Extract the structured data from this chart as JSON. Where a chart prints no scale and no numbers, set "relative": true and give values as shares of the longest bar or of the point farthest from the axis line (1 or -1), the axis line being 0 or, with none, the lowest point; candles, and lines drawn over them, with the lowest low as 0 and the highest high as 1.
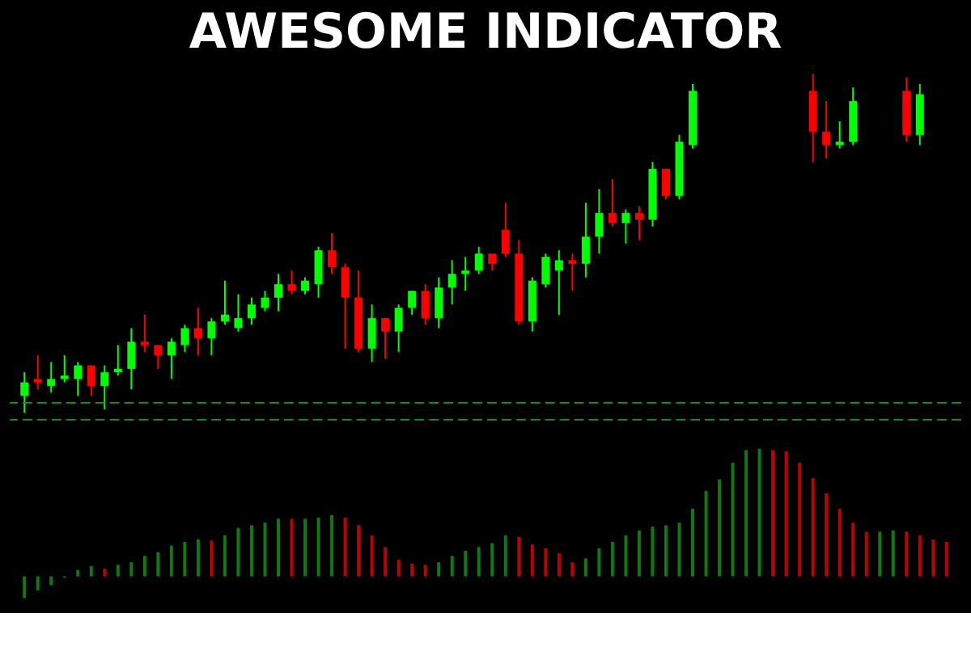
{
  "chart_data": [
    {
      "type": "candlestick",
      "title": "AWESOME INDICATOR",
      "relative": true,
      "categories": [
        null,
        null,
        null,
        null,
        null,
        null,
        null,
        null,
        null,
        null,
        null,
        null,
        null,
        null,
        null,
        null,
        null,
        null,
        null,
        null,
        null,
        null,
        null,
        null,
        null,
        null,
        null,
        null,
        null,
        null,
        null,
        null,
        null,
        null,
        null,
        null,
        null,
        null,
        null,
        null,
        null,
        null,
        null,
        null,
        null,
        null,
        null,
        null,
        null,
        null,
        null,
        null,
        null,
        null,
        null,
        null,
        null,
        null,
        null,
        null,
        null,
        null,
        null,
        null,
        null,
        null,
        null,
        null,
        null,
        null
      ],
      "ohlc": [
        [
          0.05,
          0.12,
          0,
          0.09
        ],
        [
          0.1,
          0.17,
          0.07,
          0.09
        ],
        [
          0.08,
          0.15,
          0.06,
          0.1
        ],
        [
          0.1,
          0.17,
          0.09,
          0.11
        ],
        [
          0.1,
          0.15,
          0.05,
          0.14
        ],
        [
          0.14,
          0.14,
          0.05,
          0.08
        ],
        [
          0.08,
          0.14,
          0.01,
          0.12
        ],
        [
          0.12,
          0.2,
          0.11,
          0.13
        ],
        [
          0.13,
          0.25,
          0.07,
          0.21
        ],
        [
          0.21,
          0.29,
          0.18,
          0.2
        ],
        [
          0.2,
          0.2,
          0.13,
          0.17
        ],
        [
          0.17,
          0.22,
          0.1,
          0.21
        ],
        [
          0.2,
          0.26,
          0.18,
          0.25
        ],
        [
          0.25,
          0.31,
          0.17,
          0.22
        ],
        [
          0.22,
          0.28,
          0.17,
          0.27
        ],
        [
          0.27,
          0.39,
          0.26,
          0.29
        ],
        [
          0.25,
          0.35,
          0.24,
          0.28
        ],
        [
          0.28,
          0.34,
          0.26,
          0.32
        ],
        [
          0.31,
          0.36,
          0.3,
          0.34
        ],
        [
          0.34,
          0.41,
          0.3,
          0.38
        ],
        [
          0.38,
          0.42,
          0.35,
          0.36
        ],
        [
          0.36,
          0.4,
          0.35,
          0.39
        ],
        [
          0.38,
          0.49,
          0.34,
          0.48
        ],
        [
          0.48,
          0.53,
          0.41,
          0.43
        ],
        [
          0.43,
          0.44,
          0.19,
          0.34
        ],
        [
          0.34,
          0.42,
          0.18,
          0.19
        ],
        [
          0.19,
          0.32,
          0.15,
          0.28
        ],
        [
          0.28,
          0.28,
          0.16,
          0.24
        ],
        [
          0.24,
          0.32,
          0.18,
          0.31
        ],
        [
          0.31,
          0.36,
          0.29,
          0.36
        ],
        [
          0.36,
          0.38,
          0.26,
          0.28
        ],
        [
          0.28,
          0.4,
          0.25,
          0.37
        ],
        [
          0.37,
          0.45,
          0.32,
          0.41
        ],
        [
          0.41,
          0.46,
          0.36,
          0.42
        ],
        [
          0.42,
          0.49,
          0.41,
          0.47
        ],
        [
          0.47,
          0.47,
          0.42,
          0.44
        ],
        [
          0.54,
          0.62,
          0.46,
          0.47
        ],
        [
          0.47,
          0.51,
          0.26,
          0.27
        ],
        [
          0.27,
          0.4,
          0.24,
          0.39
        ],
        [
          0.38,
          0.47,
          0.37,
          0.46
        ],
        [
          0.42,
          0.48,
          0.29,
          0.45
        ],
        [
          0.45,
          0.47,
          0.36,
          0.44
        ],
        [
          0.44,
          0.62,
          0.4,
          0.52
        ],
        [
          0.52,
          0.66,
          0.47,
          0.59
        ],
        [
          0.59,
          0.69,
          0.55,
          0.56
        ],
        [
          0.56,
          0.6,
          0.5,
          0.59
        ],
        [
          0.59,
          0.61,
          0.51,
          0.57
        ],
        [
          0.57,
          0.74,
          0.55,
          0.72
        ],
        [
          0.72,
          0.72,
          0.63,
          0.64
        ],
        [
          0.64,
          0.82,
          0.63,
          0.8
        ],
        [
          0.79,
          0.97,
          0.78,
          0.95
        ],
        null,
        null,
        null,
        null,
        null,
        null,
        null,
        null,
        [
          0.95,
          1,
          0.74,
          0.83
        ],
        [
          0.83,
          0.92,
          0.75,
          0.79
        ],
        [
          0.79,
          0.86,
          0.78,
          0.8
        ],
        [
          0.8,
          0.96,
          0.79,
          0.92
        ],
        null,
        null,
        null,
        [
          0.95,
          0.99,
          0.8,
          0.82
        ],
        [
          0.82,
          0.97,
          0.79,
          0.94
        ],
        null,
        null
      ],
      "colors": [
        "#00ff00",
        "#ff0000",
        "#00ff00",
        "#00ff00",
        "#00ff00",
        "#ff0000",
        "#00ff00",
        "#00ff00",
        "#00ff00",
        "#ff0000",
        "#ff0000",
        "#00ff00",
        "#00ff00",
        "#ff0000",
        "#00ff00",
        "#00ff00",
        "#00ff00",
        "#00ff00",
        "#00ff00",
        "#00ff00",
        "#ff0000",
        "#00ff00",
        "#00ff00",
        "#ff0000",
        "#ff0000",
        "#ff0000",
        "#00ff00",
        "#ff0000",
        "#00ff00",
        "#00ff00",
        "#ff0000",
        "#00ff00",
        "#00ff00",
        "#00ff00",
        "#00ff00",
        "#ff0000",
        "#ff0000",
        "#ff0000",
        "#00ff00",
        "#00ff00",
        "#00ff00",
        "#ff0000",
        "#00ff00",
        "#00ff00",
        "#ff0000",
        "#00ff00",
        "#ff0000",
        "#00ff00",
        "#ff0000",
        "#00ff00",
        "#00ff00",
        null,
        null,
        null,
        null,
        null,
        null,
        null,
        null,
        "#ff0000",
        "#ff0000",
        "#00ff00",
        "#00ff00",
        null,
        null,
        null,
        "#ff0000",
        "#00ff00",
        null,
        null
      ],
      "ref_lines": [
        {
          "axis": "y",
          "value": 0.03,
          "color": "#1a8a1a",
          "line_style": "dashed"
        },
        {
          "axis": "y",
          "value": -0.02,
          "color": "#1a8a1a",
          "line_style": "dashed"
        }
      ]
    },
    {
      "type": "bar",
      "relative": true,
      "categories": [
        null,
        null,
        null,
        null,
        null,
        null,
        null,
        null,
        null,
        null,
        null,
        null,
        null,
        null,
        null,
        null,
        null,
        null,
        null,
        null,
        null,
        null,
        null,
        null,
        null,
        null,
        null,
        null,
        null,
        null,
        null,
        null,
        null,
        null,
        null,
        null,
        null,
        null,
        null,
        null,
        null,
        null,
        null,
        null,
        null,
        null,
        null,
        null,
        null,
        null,
        null,
        null,
        null,
        null,
        null,
        null,
        null,
        null,
        null,
        null,
        null,
        null,
        null,
        null,
        null,
        null,
        null,
        null,
        null,
        null
      ],
      "values": [
        -0.17,
        -0.11,
        -0.07,
        -0.01,
        0.05,
        0.08,
        0.06,
        0.09,
        0.11,
        0.16,
        0.19,
        0.24,
        0.27,
        0.29,
        0.28,
        0.32,
        0.38,
        0.4,
        0.42,
        0.45,
        0.45,
        0.45,
        0.46,
        0.48,
        0.46,
        0.4,
        0.32,
        0.23,
        0.13,
        0.1,
        0.09,
        0.11,
        0.16,
        0.2,
        0.23,
        0.26,
        0.32,
        0.31,
        0.25,
        0.22,
        0.18,
        0.11,
        0.14,
        0.22,
        0.27,
        0.32,
        0.36,
        0.39,
        0.4,
        0.42,
        0.53,
        0.67,
        0.76,
        0.89,
        0.99,
        1,
        0.99,
        0.98,
        0.89,
        0.77,
        0.65,
        0.53,
        0.42,
        0.35,
        0.35,
        0.36,
        0.35,
        0.32,
        0.29,
        0.27
      ],
      "colors": [
        "#0f7a0f",
        "#0f7a0f",
        "#0f7a0f",
        "#0f7a0f",
        "#0f7a0f",
        "#0f7a0f",
        "#c00000",
        "#0f7a0f",
        "#0f7a0f",
        "#0f7a0f",
        "#0f7a0f",
        "#0f7a0f",
        "#0f7a0f",
        "#0f7a0f",
        "#c00000",
        "#0f7a0f",
        "#0f7a0f",
        "#0f7a0f",
        "#0f7a0f",
        "#0f7a0f",
        "#c00000",
        "#0f7a0f",
        "#0f7a0f",
        "#0f7a0f",
        "#c00000",
        "#c00000",
        "#c00000",
        "#c00000",
        "#c00000",
        "#c00000",
        "#c00000",
        "#0f7a0f",
        "#0f7a0f",
        "#0f7a0f",
        "#0f7a0f",
        "#0f7a0f",
        "#0f7a0f",
        "#c00000",
        "#c00000",
        "#c00000",
        "#c00000",
        "#c00000",
        "#0f7a0f",
        "#0f7a0f",
        "#0f7a0f",
        "#0f7a0f",
        "#0f7a0f",
        "#0f7a0f",
        "#0f7a0f",
        "#0f7a0f",
        "#0f7a0f",
        "#0f7a0f",
        "#0f7a0f",
        "#0f7a0f",
        "#0f7a0f",
        "#0f7a0f",
        "#c00000",
        "#c00000",
        "#c00000",
        "#c00000",
        "#c00000",
        "#c00000",
        "#c00000",
        "#c00000",
        "#0f7a0f",
        "#0f7a0f",
        "#c00000",
        "#c00000",
        "#c00000",
        "#c00000"
      ]
    }
  ]
}
